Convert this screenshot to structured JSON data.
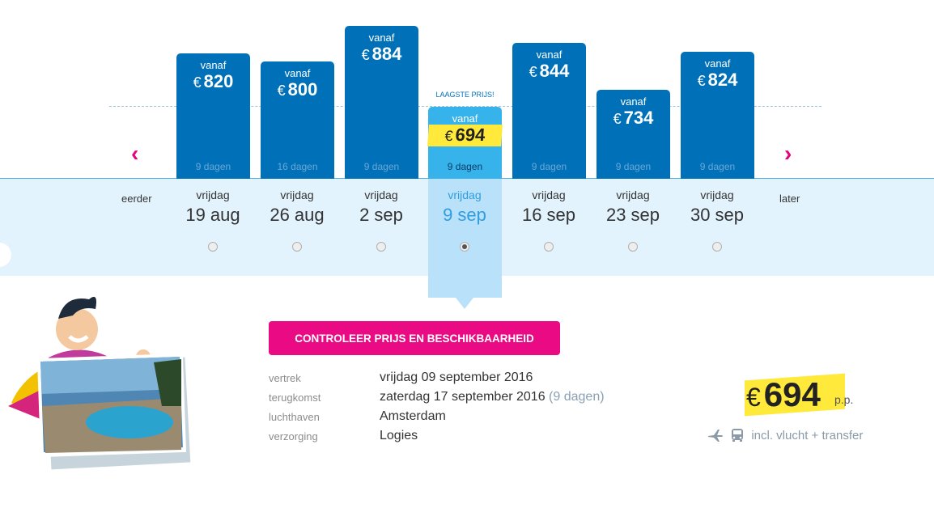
{
  "navigation": {
    "earlier": "eerder",
    "later": "later"
  },
  "highlight_label": "LAAGSTE PRIJS!",
  "currency": "€",
  "bars": [
    {
      "from": "vanaf",
      "price": "820",
      "days": "9 dagen",
      "weekday": "vrijdag",
      "date": "19 aug",
      "value": 820,
      "selected": false
    },
    {
      "from": "vanaf",
      "price": "800",
      "days": "16 dagen",
      "weekday": "vrijdag",
      "date": "26 aug",
      "value": 800,
      "selected": false
    },
    {
      "from": "vanaf",
      "price": "884",
      "days": "9 dagen",
      "weekday": "vrijdag",
      "date": "2 sep",
      "value": 884,
      "selected": false
    },
    {
      "from": "vanaf",
      "price": "694",
      "days": "9 dagen",
      "weekday": "vrijdag",
      "date": "9 sep",
      "value": 694,
      "selected": true
    },
    {
      "from": "vanaf",
      "price": "844",
      "days": "9 dagen",
      "weekday": "vrijdag",
      "date": "16 sep",
      "value": 844,
      "selected": false
    },
    {
      "from": "vanaf",
      "price": "734",
      "days": "9 dagen",
      "weekday": "vrijdag",
      "date": "23 sep",
      "value": 734,
      "selected": false
    },
    {
      "from": "vanaf",
      "price": "824",
      "days": "9 dagen",
      "weekday": "vrijdag",
      "date": "30 sep",
      "value": 824,
      "selected": false
    }
  ],
  "cta": {
    "label": "CONTROLEER PRIJS EN BESCHIKBAARHEID"
  },
  "details": [
    {
      "label": "vertrek",
      "value": "vrijdag 09 september 2016",
      "extra": ""
    },
    {
      "label": "terugkomst",
      "value": "zaterdag 17 september 2016",
      "extra": "(9 dagen)"
    },
    {
      "label": "luchthaven",
      "value": "Amsterdam",
      "extra": ""
    },
    {
      "label": "verzorging",
      "value": "Logies",
      "extra": ""
    }
  ],
  "summary": {
    "price": "694",
    "per_person": "p.p.",
    "includes": "incl. vlucht + transfer"
  },
  "colors": {
    "bar": "#0071b9",
    "bar_selected": "#37b3ec",
    "accent": "#ea0a84",
    "highlight": "#ffe93a"
  },
  "icons": [
    "chevron-left-icon",
    "chevron-right-icon",
    "plane-icon",
    "bus-icon"
  ]
}
